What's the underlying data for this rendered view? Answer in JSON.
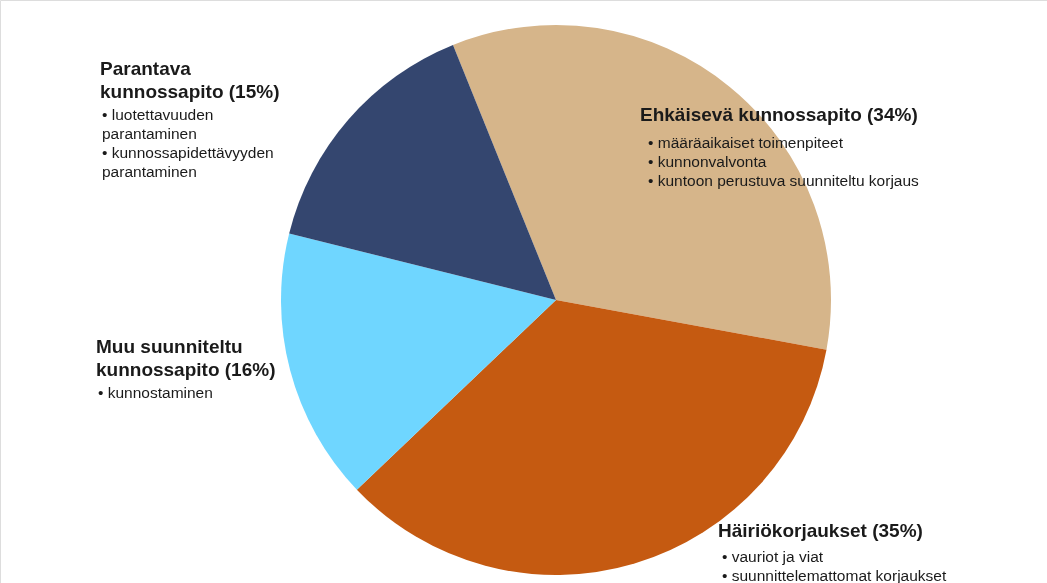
{
  "chart_data": {
    "type": "pie",
    "categories": [
      "Ehkäisevä kunnossapito",
      "Häiriökorjaukset",
      "Muu suunniteltu kunnossapito",
      "Parantava kunnossapito"
    ],
    "values": [
      34,
      35,
      16,
      15
    ],
    "value_labels": [
      "(34%)",
      "(35%)",
      "(16%)",
      "(15%)"
    ],
    "colors": [
      "#d6b58a",
      "#c55a11",
      "#6fd6ff",
      "#34466f"
    ],
    "annotations": [
      "• määräaikaiset toimenpiteet\n• kunnonvalvonta\n• kuntoon perustuva suunniteltu korjaus",
      "• vauriot ja viat\n• suunnittelemattomat korjaukset",
      "• kunnostaminen",
      "• luotettavuuden\n  parantaminen\n• kunnossapidettävyyden\n  parantaminen"
    ],
    "data_labels": false
  }
}
